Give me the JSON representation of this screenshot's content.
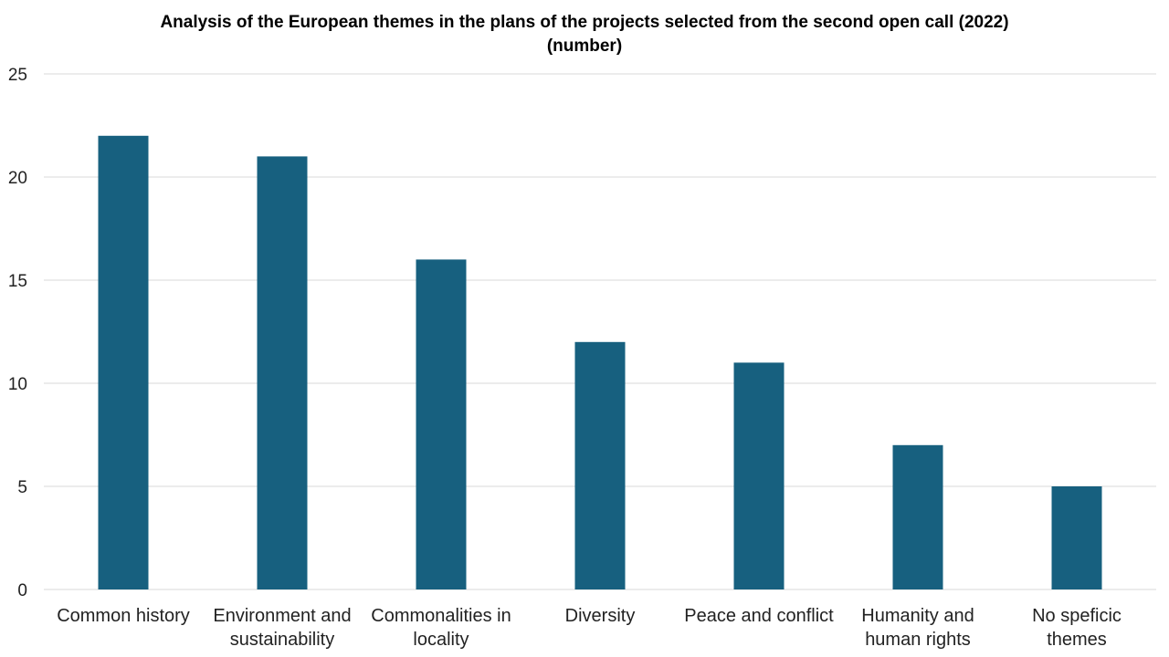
{
  "chart_data": {
    "type": "bar",
    "title": "Analysis of the European themes in the plans of the projects selected from the second open call (2022)",
    "subtitle": "(number)",
    "xlabel": "",
    "ylabel": "",
    "categories": [
      [
        "Common history"
      ],
      [
        "Environment and",
        "sustainability"
      ],
      [
        "Commonalities in",
        "locality"
      ],
      [
        "Diversity"
      ],
      [
        "Peace and conflict"
      ],
      [
        "Humanity and",
        "human rights"
      ],
      [
        "No speficic",
        "themes"
      ]
    ],
    "values": [
      22,
      21,
      16,
      12,
      11,
      7,
      5
    ],
    "ylim": [
      0,
      25
    ],
    "yticks": [
      0,
      5,
      10,
      15,
      20,
      25
    ],
    "grid": true,
    "legend": "none",
    "bar_color": "#17607f",
    "grid_color": "#d9d9d9"
  }
}
